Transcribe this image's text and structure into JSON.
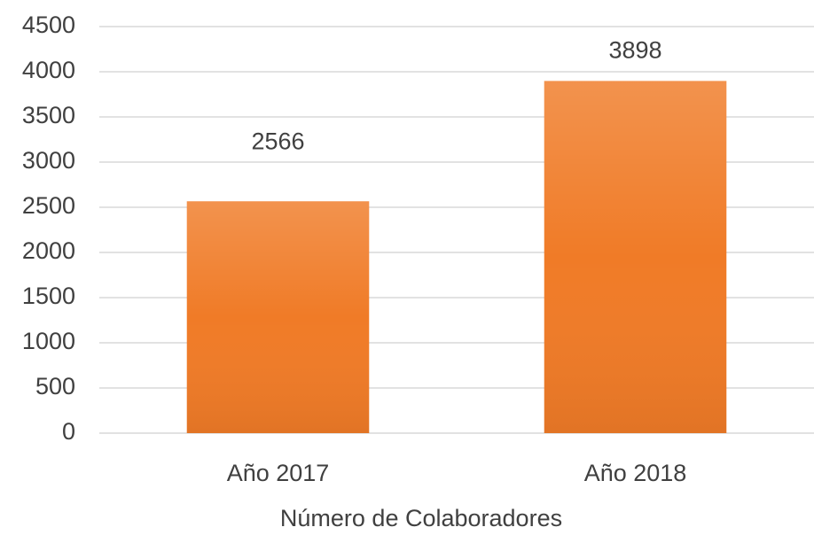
{
  "chart_data": {
    "type": "bar",
    "x_label": "Número de Colaboradores",
    "categories": [
      "Año 2017",
      "Año 2018"
    ],
    "values": [
      2566,
      3898
    ],
    "color": "#f07b27",
    "ylim": [
      0,
      4500
    ],
    "yticks": [
      0,
      500,
      1000,
      1500,
      2000,
      2500,
      3000,
      3500,
      4000,
      4500
    ],
    "grid": true
  }
}
